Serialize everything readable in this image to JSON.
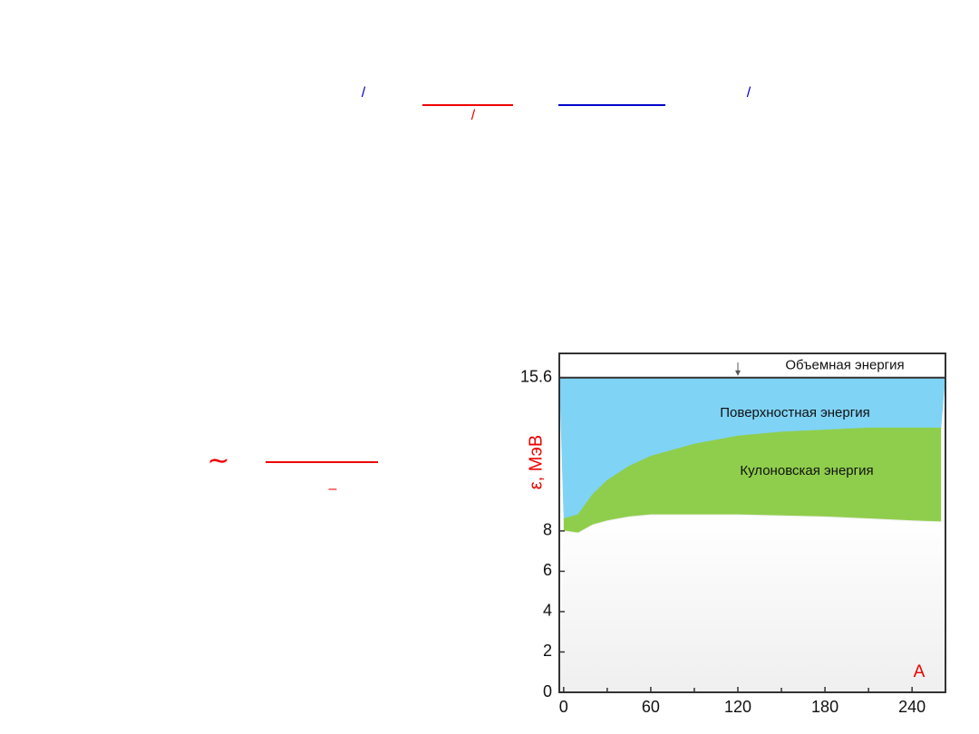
{
  "formula_marks": [
    "/",
    "/",
    "/",
    "∼",
    "–"
  ],
  "chart_data": {
    "type": "area",
    "ylabel": "ε, МэВ",
    "xlabel": "A",
    "x": [
      0,
      10,
      20,
      30,
      45,
      60,
      90,
      120,
      150,
      180,
      210,
      240,
      260
    ],
    "series": [
      {
        "color": "#efefef",
        "values": [
          8.0,
          7.9,
          8.3,
          8.5,
          8.7,
          8.8,
          8.8,
          8.8,
          8.75,
          8.7,
          8.6,
          8.5,
          8.45
        ]
      },
      {
        "color": "#8fce4c",
        "values": [
          8.6,
          8.8,
          9.8,
          10.5,
          11.2,
          11.7,
          12.3,
          12.7,
          12.9,
          13.0,
          13.1,
          13.1,
          13.1
        ]
      }
    ],
    "bulk_level": 15.6,
    "surface_color": "#7fd3f5",
    "annotations": [
      "Объемная энергия",
      "Поверхностная энергия",
      "Кулоновская энергия"
    ],
    "xlim": [
      -3,
      263
    ],
    "xticks": [
      0,
      60,
      120,
      180,
      240
    ],
    "xminor": [
      30,
      90,
      150,
      210
    ],
    "ylim": [
      0,
      16.8
    ],
    "yticks": [
      0,
      2,
      4,
      6,
      8,
      15.6
    ]
  }
}
